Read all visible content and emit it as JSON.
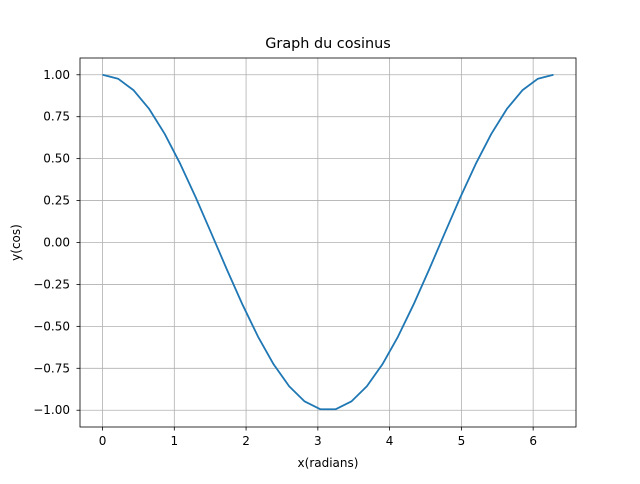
{
  "chart_data": {
    "type": "line",
    "title": "Graph du cosinus",
    "xlabel": "x(radians)",
    "ylabel": "y(cos)",
    "xlim": [
      -0.314,
      6.597
    ],
    "ylim": [
      -1.1,
      1.1
    ],
    "grid": true,
    "xticks": [
      0,
      1,
      2,
      3,
      4,
      5,
      6
    ],
    "xtick_labels": [
      "0",
      "1",
      "2",
      "3",
      "4",
      "5",
      "6"
    ],
    "yticks": [
      1.0,
      0.75,
      0.5,
      0.25,
      0.0,
      -0.25,
      -0.5,
      -0.75,
      -1.0
    ],
    "ytick_labels": [
      "1.00",
      "0.75",
      "0.50",
      "0.25",
      "0.00",
      "−0.25",
      "−0.50",
      "−0.75",
      "−1.00"
    ],
    "series": [
      {
        "color": "#1f77b4",
        "x": [
          0.0,
          0.2167,
          0.4333,
          0.65,
          0.8666,
          1.0833,
          1.3,
          1.5166,
          1.7333,
          1.95,
          2.1666,
          2.3833,
          2.5999,
          2.8166,
          3.0333,
          3.2499,
          3.4666,
          3.6832,
          3.8999,
          4.1166,
          4.3332,
          4.5499,
          4.7666,
          4.9832,
          5.1999,
          5.4166,
          5.6332,
          5.8499,
          6.0665,
          6.2832
        ],
        "y": [
          1.0,
          0.9766,
          0.9076,
          0.7961,
          0.6473,
          0.4684,
          0.2675,
          0.0541,
          -0.1618,
          -0.3701,
          -0.5612,
          -0.726,
          -0.8569,
          -0.9477,
          -0.9941,
          -0.9941,
          -0.9477,
          -0.8569,
          -0.726,
          -0.5612,
          -0.3701,
          -0.1618,
          0.0541,
          0.2675,
          0.4684,
          0.6473,
          0.7961,
          0.9076,
          0.9766,
          1.0
        ]
      }
    ]
  }
}
